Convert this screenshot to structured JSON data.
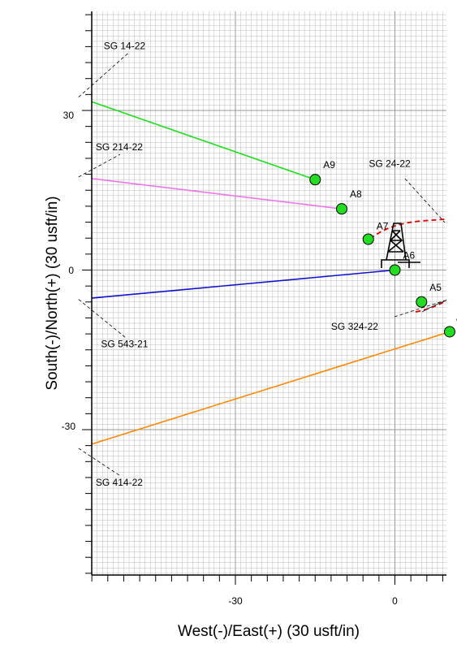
{
  "chart_data": {
    "type": "scatter",
    "xlabel": "West(-)/East(+) (30 usft/in)",
    "ylabel": "South(-)/North(+) (30 usft/in)",
    "xlim": [
      -58.5,
      9.5
    ],
    "ylim": [
      -59,
      50
    ],
    "x_ticks": [
      -30,
      0
    ],
    "y_ticks": [
      30,
      0,
      -30
    ],
    "grid": true,
    "points": [
      {
        "label": "A9",
        "x": -15,
        "y": 17
      },
      {
        "label": "A8",
        "x": -10,
        "y": 11.5
      },
      {
        "label": "A7",
        "x": -5,
        "y": 5.8
      },
      {
        "label": "A6",
        "x": 0,
        "y": 0
      },
      {
        "label": "A5",
        "x": 5,
        "y": -6
      },
      {
        "label": "A",
        "x": 10.3,
        "y": -11.6
      }
    ],
    "well_paths": [
      {
        "label": "SG 14-22",
        "color": "#22dd22",
        "from": [
          -15,
          17
        ],
        "to": [
          -59.5,
          32.5
        ],
        "label_pos": [
          -56,
          41.5
        ]
      },
      {
        "label": "SG 214-22",
        "color": "#ee77ee",
        "from": [
          -10,
          11.5
        ],
        "to": [
          -59.5,
          17.5
        ],
        "label_pos": [
          -57.5,
          22.5
        ]
      },
      {
        "label": "SG 543-21",
        "color": "#1111cc",
        "from": [
          0,
          0
        ],
        "to": [
          -59.5,
          -5.5
        ],
        "label_pos": [
          -56.5,
          -14.5
        ]
      },
      {
        "label": "SG 414-22",
        "color": "#ff8800",
        "from": [
          10.3,
          -11.6
        ],
        "to": [
          -59.5,
          -33.5
        ],
        "label_pos": [
          -57.5,
          -40.5
        ]
      }
    ],
    "annotations": [
      {
        "label": "SG 24-22",
        "label_pos": [
          -4.9,
          19.4
        ]
      },
      {
        "label": "SG 324-22",
        "label_pos": [
          -12,
          -11.2
        ]
      }
    ],
    "colors": {
      "marker_fill": "#22dd22",
      "dashed_curve": "#dd0000",
      "grid": "#bbbbbb"
    },
    "icons": [
      "drilling-rig-icon"
    ]
  }
}
